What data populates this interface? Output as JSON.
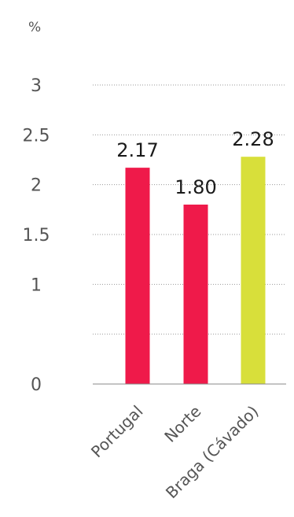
{
  "chart_data": {
    "type": "bar",
    "unit_label": "%",
    "categories": [
      "Portugal",
      "Norte",
      "Braga (Cávado)"
    ],
    "values": [
      2.17,
      1.8,
      2.28
    ],
    "value_labels": [
      "2.17",
      "1.80",
      "2.28"
    ],
    "bar_colors": [
      "#ef1a4a",
      "#ef1a4a",
      "#d8df3a"
    ],
    "ylim": [
      0,
      3
    ],
    "yticks": [
      0,
      0.5,
      1,
      1.5,
      2,
      2.5,
      3
    ],
    "ytick_labels": [
      "0",
      "",
      "1",
      "1.5",
      "2",
      "2.5",
      "3"
    ],
    "gridlines": "dotted",
    "title": "",
    "xlabel": "",
    "ylabel": ""
  }
}
